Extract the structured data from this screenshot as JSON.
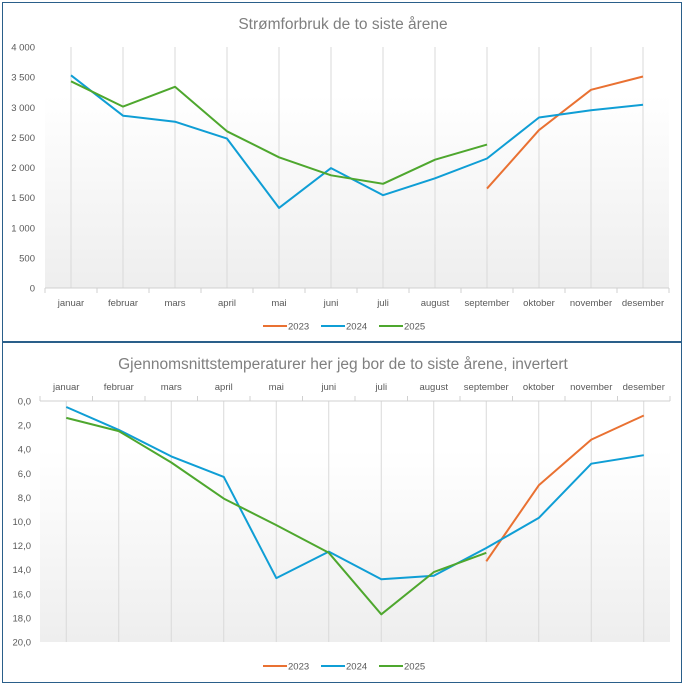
{
  "colors": {
    "2023": "#E97132",
    "2024": "#0F9ED5",
    "2025": "#4EA72E"
  },
  "chart_data": [
    {
      "type": "line",
      "title": "Strømforbruk de to siste årene",
      "categories": [
        "januar",
        "februar",
        "mars",
        "april",
        "mai",
        "juni",
        "juli",
        "august",
        "september",
        "oktober",
        "november",
        "desember"
      ],
      "ylim": [
        0,
        4000
      ],
      "yticks": [
        0,
        500,
        1000,
        1500,
        2000,
        2500,
        3000,
        3500,
        4000
      ],
      "ytick_labels": [
        "0",
        "500",
        "1 000",
        "1 500",
        "2 000",
        "2 500",
        "3 000",
        "3 500",
        "4 000"
      ],
      "y_inverted": false,
      "x_axis_position": "bottom",
      "legend": "bottom",
      "series": [
        {
          "name": "2023",
          "values": [
            null,
            null,
            null,
            null,
            null,
            null,
            null,
            null,
            1650,
            2620,
            3290,
            3510
          ]
        },
        {
          "name": "2024",
          "values": [
            3530,
            2860,
            2760,
            2480,
            1330,
            1990,
            1540,
            1820,
            2150,
            2830,
            2950,
            3040
          ]
        },
        {
          "name": "2025",
          "values": [
            3430,
            3010,
            3340,
            2600,
            2170,
            1870,
            1730,
            2130,
            2380,
            null,
            null,
            null
          ]
        }
      ]
    },
    {
      "type": "line",
      "title": "Gjennomsnittstemperaturer her jeg bor de to siste årene, invertert",
      "categories": [
        "januar",
        "februar",
        "mars",
        "april",
        "mai",
        "juni",
        "juli",
        "august",
        "september",
        "oktober",
        "november",
        "desember"
      ],
      "ylim": [
        0,
        20
      ],
      "yticks": [
        0,
        2,
        4,
        6,
        8,
        10,
        12,
        14,
        16,
        18,
        20
      ],
      "ytick_labels": [
        "0,0",
        "2,0",
        "4,0",
        "6,0",
        "8,0",
        "10,0",
        "12,0",
        "14,0",
        "16,0",
        "18,0",
        "20,0"
      ],
      "y_inverted": true,
      "x_axis_position": "top",
      "legend": "bottom",
      "series": [
        {
          "name": "2023",
          "values": [
            null,
            null,
            null,
            null,
            null,
            null,
            null,
            null,
            13.3,
            7.0,
            3.2,
            1.2
          ]
        },
        {
          "name": "2024",
          "values": [
            0.5,
            2.4,
            4.6,
            6.3,
            14.7,
            12.5,
            14.8,
            14.5,
            12.2,
            9.7,
            5.2,
            4.5
          ]
        },
        {
          "name": "2025",
          "values": [
            1.4,
            2.5,
            5.1,
            8.1,
            10.3,
            12.6,
            17.7,
            14.2,
            12.6,
            null,
            null,
            null
          ]
        }
      ]
    }
  ]
}
